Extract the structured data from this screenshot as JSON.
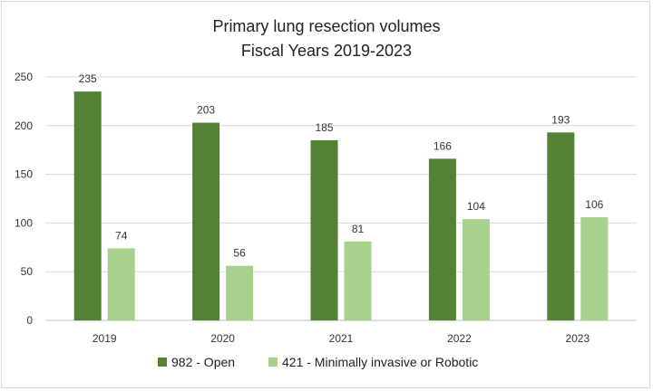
{
  "chart_data": {
    "type": "bar",
    "title": "Primary lung resection volumes",
    "subtitle": "Fiscal Years 2019-2023",
    "xlabel": "",
    "ylabel": "",
    "categories": [
      "2019",
      "2020",
      "2021",
      "2022",
      "2023"
    ],
    "series": [
      {
        "name": "982 - Open",
        "values": [
          235,
          203,
          185,
          166,
          193
        ],
        "color": "#538135"
      },
      {
        "name": "421 - Minimally invasive or Robotic",
        "values": [
          74,
          56,
          81,
          104,
          106
        ],
        "color": "#a9d18e"
      }
    ],
    "ylim": [
      0,
      250
    ],
    "yticks": [
      0,
      50,
      100,
      150,
      200,
      250
    ],
    "grid": true,
    "legend": "bottom"
  }
}
